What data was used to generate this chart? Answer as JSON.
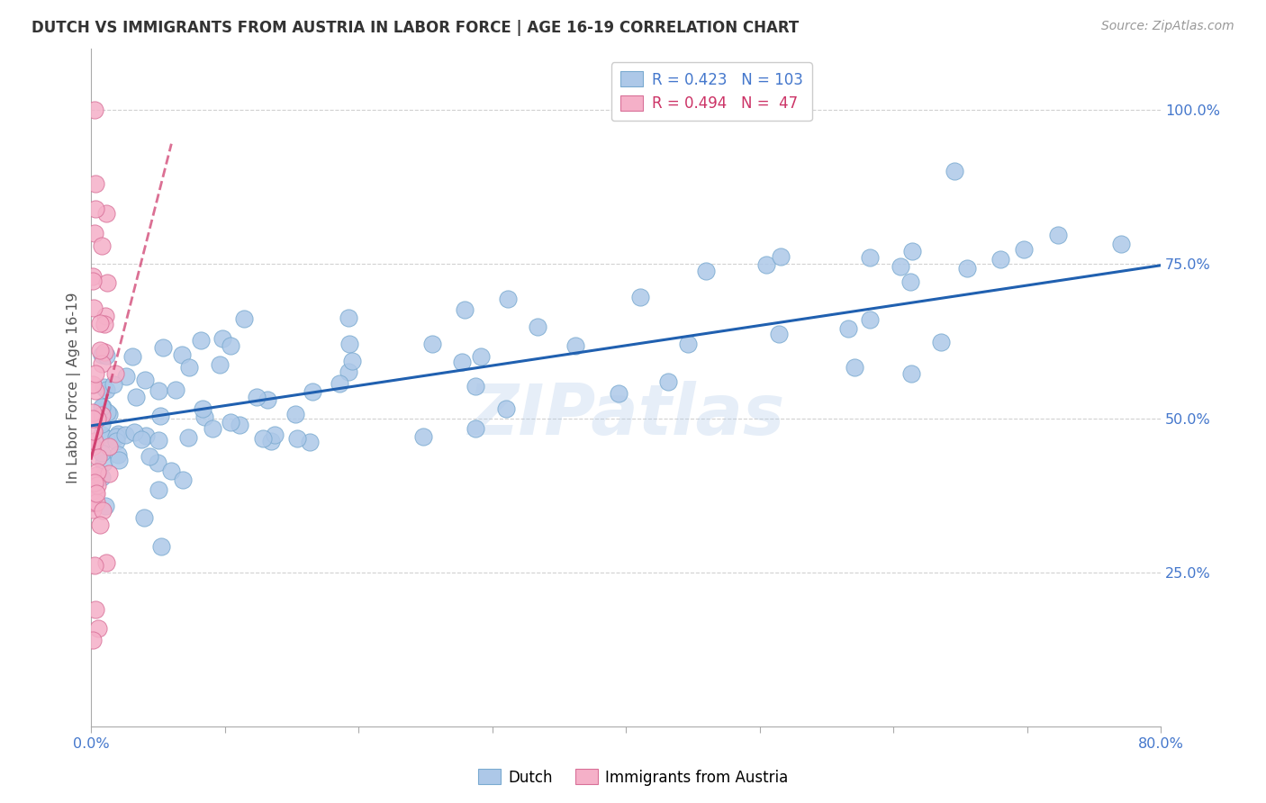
{
  "title": "DUTCH VS IMMIGRANTS FROM AUSTRIA IN LABOR FORCE | AGE 16-19 CORRELATION CHART",
  "source": "Source: ZipAtlas.com",
  "ylabel": "In Labor Force | Age 16-19",
  "x_min": 0.0,
  "x_max": 0.8,
  "y_min": 0.0,
  "y_max": 1.1,
  "y_tick_labels_right": [
    "25.0%",
    "50.0%",
    "75.0%",
    "100.0%"
  ],
  "y_tick_positions_right": [
    0.25,
    0.5,
    0.75,
    1.0
  ],
  "watermark": "ZIPatlas",
  "legend_dutch_r": "0.423",
  "legend_dutch_n": "103",
  "legend_austria_r": "0.494",
  "legend_austria_n": " 47",
  "dutch_color": "#adc8e8",
  "dutch_edge_color": "#7aaad0",
  "dutch_trendline_color": "#2060b0",
  "austria_color": "#f5b0c8",
  "austria_edge_color": "#d87098",
  "austria_trendline_color": "#d04070",
  "grid_color": "#cccccc",
  "title_color": "#333333",
  "axis_label_color": "#555555",
  "blue_text_color": "#4477cc",
  "pink_text_color": "#cc3366",
  "tick_color": "#aaaaaa",
  "dutch_intercept": 0.488,
  "dutch_slope": 0.325,
  "austria_intercept": 0.435,
  "austria_slope": 8.5
}
